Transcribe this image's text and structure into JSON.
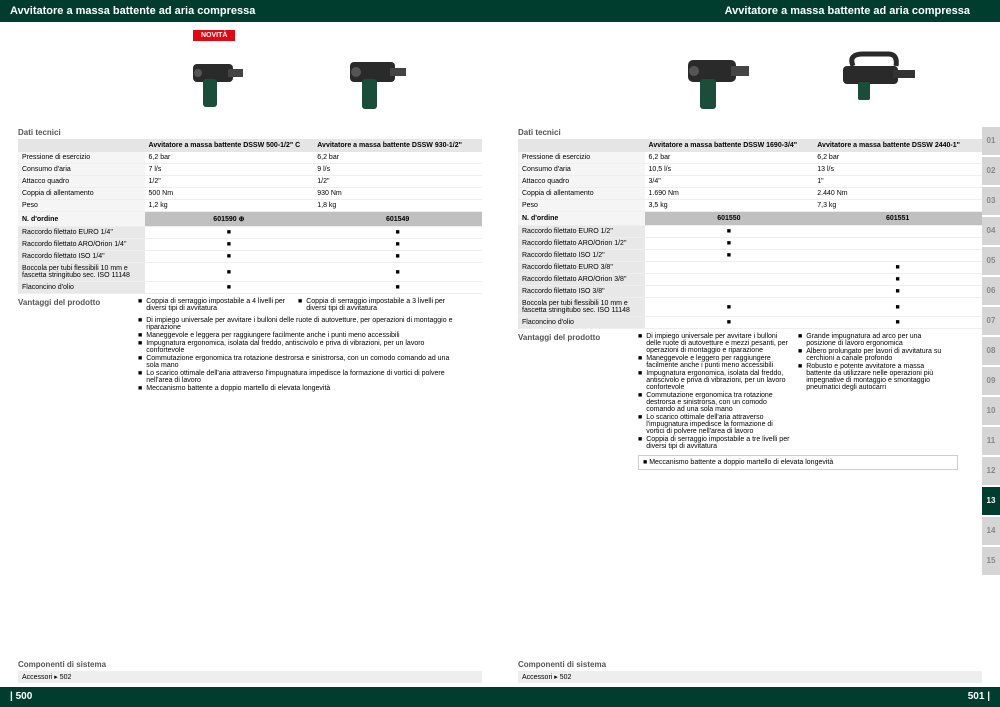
{
  "header": "Avvitatore a massa battente ad aria compressa",
  "novita": "NOVITÀ",
  "sections": {
    "dati_tecnici": "Dati tecnici",
    "n_ordine": "N. d'ordine",
    "vantaggi": "Vantaggi del prodotto",
    "componenti": "Componenti di sistema",
    "new_icon": "⊕"
  },
  "accessori": "Accessori ▸ 502",
  "left": {
    "products": [
      {
        "name": "Avvitatore a massa battente DSSW 500-1/2\" C",
        "order": "601590"
      },
      {
        "name": "Avvitatore a massa battente DSSW 930-1/2\"",
        "order": "601549"
      }
    ],
    "specs": [
      {
        "label": "Pressione di esercizio",
        "v": [
          "6,2 bar",
          "6,2 bar"
        ]
      },
      {
        "label": "Consumo d'aria",
        "v": [
          "7 l/s",
          "9 l/s"
        ]
      },
      {
        "label": "Attacco quadro",
        "v": [
          "1/2\"",
          "1/2\""
        ]
      },
      {
        "label": "Coppia di allentamento",
        "v": [
          "500 Nm",
          "930 Nm"
        ]
      },
      {
        "label": "Peso",
        "v": [
          "1,2 kg",
          "1,8 kg"
        ]
      }
    ],
    "accessories_rows": [
      "Raccordo filettato EURO 1/4\"",
      "Raccordo filettato ARO/Orion 1/4\"",
      "Raccordo filettato ISO 1/4\"",
      "Boccola per tubi flessibili 10 mm e fascetta stringitubo sec. ISO 11148",
      "Flaconcino d'olio"
    ],
    "top_bullets": [
      "Coppia di serraggio impostabile a 4 livelli per diversi tipi di avvitatura",
      "Coppia di serraggio impostabile a 3 livelli per diversi tipi di avvitatura"
    ],
    "bullets": [
      "Di impiego universale per avvitare i bulloni delle ruote di autovetture, per operazioni di montaggio e riparazione",
      "Maneggevole e leggera per raggiungere facilmente anche i punti meno accessibili",
      "Impugnatura ergonomica, isolata dal freddo, antiscivolo e priva di vibrazioni, per un lavoro confortevole",
      "Commutazione ergonomica tra rotazione destrorsa e sinistrorsa, con un comodo comando ad una sola mano",
      "Lo scarico ottimale dell'aria attraverso l'impugnatura impedisce la formazione di vortici di polvere nell'area di lavoro",
      "Meccanismo battente a doppio martello di elevata longevità"
    ],
    "page_num": "| 500"
  },
  "right": {
    "products": [
      {
        "name": "Avvitatore a massa battente DSSW 1690-3/4\"",
        "order": "601550"
      },
      {
        "name": "Avvitatore a massa battente DSSW 2440-1\"",
        "order": "601551"
      }
    ],
    "specs": [
      {
        "label": "Pressione di esercizio",
        "v": [
          "6,2 bar",
          "6,2 bar"
        ]
      },
      {
        "label": "Consumo d'aria",
        "v": [
          "10,5 l/s",
          "13 l/s"
        ]
      },
      {
        "label": "Attacco quadro",
        "v": [
          "3/4\"",
          "1\""
        ]
      },
      {
        "label": "Coppia di allentamento",
        "v": [
          "1.690 Nm",
          "2.440 Nm"
        ]
      },
      {
        "label": "Peso",
        "v": [
          "3,5 kg",
          "7,3 kg"
        ]
      }
    ],
    "accessories_rows": [
      "Raccordo filettato EURO 1/2\"",
      "Raccordo filettato ARO/Orion 1/2\"",
      "Raccordo filettato ISO 1/2\"",
      "Raccordo filettato EURO 3/8\"",
      "Raccordo filettato ARO/Orion 3/8\"",
      "Raccordo filettato ISO 3/8\"",
      "Boccola per tubi flessibili 10 mm e fascetta stringitubo sec. ISO 11148",
      "Flaconcino d'olio"
    ],
    "acc_marks": [
      [
        true,
        false
      ],
      [
        true,
        false
      ],
      [
        true,
        false
      ],
      [
        false,
        true
      ],
      [
        false,
        true
      ],
      [
        false,
        true
      ],
      [
        true,
        true
      ],
      [
        true,
        true
      ]
    ],
    "bullets_left": [
      "Di impiego universale per avvitare i bulloni delle ruote di autovetture e mezzi pesanti, per operazioni di montaggio e riparazione",
      "Maneggevole e leggero per raggiungere facilmente anche i punti meno accessibili",
      "Impugnatura ergonomica, isolata dal freddo, antiscivolo e priva di vibrazioni, per un lavoro confortevole",
      "Commutazione ergonomica tra rotazione destrorsa e sinistrorsa, con un comodo comando ad una sola mano",
      "Lo scarico ottimale dell'aria attraverso l'impugnatura impedisce la formazione di vortici di polvere nell'area di lavoro",
      "Coppia di serraggio impostabile a tre livelli per diversi tipi di avvitatura"
    ],
    "bullets_right": [
      "Grande impugnatura ad arco per una posizione di lavoro ergonomica",
      "Albero prolungato per lavori di avvitatura su cerchioni a canale profondo",
      "Robusto e potente avvitatore a massa battente da utilizzare nelle operazioni più impegnative di montaggio e smontaggio pneumatici degli autocarri"
    ],
    "mecc": "Meccanismo battente a doppio martello di elevata longevità",
    "page_num": "501 |"
  },
  "tabs": [
    "01",
    "02",
    "03",
    "04",
    "05",
    "06",
    "07",
    "08",
    "09",
    "10",
    "11",
    "12",
    "13",
    "14",
    "15"
  ],
  "active_tab": "13",
  "colors": {
    "brand": "#003d2e",
    "red": "#e30613"
  }
}
